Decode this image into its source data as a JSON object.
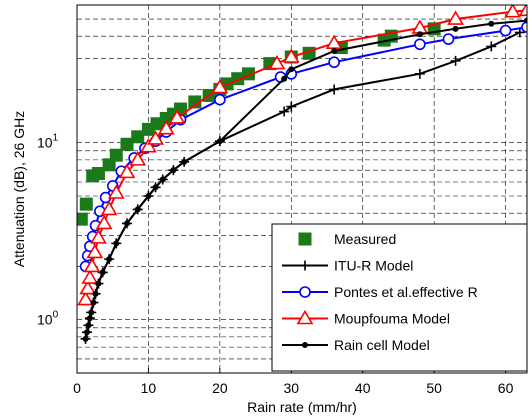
{
  "chart_data": {
    "type": "line",
    "title": "",
    "xlabel": "Rain rate (mm/hr)",
    "ylabel": "Attenuation (dB), 26 GHz",
    "xlim": [
      0,
      63
    ],
    "ylim": [
      0.5,
      60
    ],
    "yscale": "log",
    "grid": true,
    "grid_style": "dashed",
    "legend_position": "lower-right",
    "x_ticks": [
      "0",
      "10",
      "20",
      "30",
      "40",
      "50",
      "60"
    ],
    "y_ticks": [
      {
        "value": 1,
        "base": "10",
        "exp": "0"
      },
      {
        "value": 10,
        "base": "10",
        "exp": "1"
      }
    ],
    "series": [
      {
        "name": "Measured",
        "color": "#1a7a1a",
        "line": false,
        "marker": "square",
        "x": [
          0.6,
          1.3,
          2.2,
          3.0,
          4.5,
          5.5,
          7.0,
          8.5,
          10.0,
          11.2,
          12.5,
          13.5,
          14.5,
          16.5,
          18.5,
          20.0,
          21.0,
          22.5,
          24.0,
          27.0,
          30.0,
          32.5,
          37.0,
          43.0,
          44.0,
          50.0
        ],
        "y": [
          3.7,
          4.5,
          6.5,
          6.7,
          7.5,
          8.5,
          9.8,
          10.8,
          11.9,
          12.8,
          13.7,
          14.5,
          15.5,
          17.0,
          18.5,
          20.0,
          21.5,
          23.0,
          24.5,
          28.0,
          30.5,
          32.0,
          34.5,
          38.0,
          40.0,
          44.0
        ]
      },
      {
        "name": "ITU-R Model",
        "color": "#000000",
        "line": true,
        "marker": "plus",
        "x": [
          1.2,
          1.4,
          1.6,
          1.8,
          2.0,
          2.3,
          2.6,
          3.0,
          3.6,
          4.5,
          5.5,
          7.0,
          8.5,
          10.0,
          11.0,
          12.0,
          13.5,
          15.0,
          20.0,
          29.0,
          30.0,
          36.0,
          48.0,
          53.0,
          58.0,
          62.0
        ],
        "y": [
          0.78,
          0.85,
          0.93,
          1.02,
          1.1,
          1.25,
          1.4,
          1.6,
          1.85,
          2.2,
          2.7,
          3.5,
          4.2,
          5.0,
          5.6,
          6.2,
          7.0,
          7.8,
          10.2,
          15.0,
          16.0,
          20.0,
          24.5,
          29.0,
          35.0,
          42.0
        ]
      },
      {
        "name": "Pontes et al.effective R",
        "color": "#0000ff",
        "line": true,
        "marker": "circle",
        "x": [
          1.2,
          1.5,
          1.8,
          2.2,
          2.6,
          3.2,
          4.0,
          5.0,
          6.2,
          8.0,
          9.5,
          11.0,
          12.5,
          14.5,
          20.0,
          28.5,
          30.0,
          36.0,
          48.0,
          52.0,
          60.0,
          63.0
        ],
        "y": [
          2.0,
          2.3,
          2.6,
          2.95,
          3.4,
          4.1,
          4.9,
          5.7,
          6.9,
          8.2,
          9.3,
          10.2,
          11.5,
          13.5,
          17.5,
          23.5,
          24.5,
          28.5,
          36.0,
          38.5,
          43.0,
          45.0
        ]
      },
      {
        "name": "Moupfouma Model",
        "color": "#ff0000",
        "line": true,
        "marker": "triangle",
        "x": [
          1.2,
          1.5,
          1.8,
          2.1,
          2.5,
          3.0,
          3.8,
          4.5,
          5.5,
          7.0,
          8.5,
          10.0,
          11.0,
          12.5,
          14.0,
          20.0,
          28.0,
          30.0,
          36.0,
          48.0,
          53.0,
          61.0,
          63.0
        ],
        "y": [
          1.3,
          1.5,
          1.72,
          2.0,
          2.4,
          2.9,
          3.5,
          4.2,
          5.2,
          6.8,
          8.0,
          9.5,
          10.5,
          12.0,
          13.8,
          20.5,
          28.0,
          30.5,
          36.5,
          44.5,
          50.0,
          55.0,
          56.0
        ]
      },
      {
        "name": "Rain cell Model",
        "color": "#000000",
        "line": true,
        "marker": "dot",
        "x": [
          1.2,
          1.4,
          1.6,
          1.8,
          2.0,
          2.3,
          2.6,
          3.0,
          3.6,
          4.5,
          5.5,
          7.0,
          8.5,
          10.0,
          11.0,
          12.0,
          13.5,
          15.0,
          20.0,
          29.0,
          30.0,
          36.0,
          48.0,
          53.0,
          58.0,
          63.0
        ],
        "y": [
          0.78,
          0.85,
          0.93,
          1.02,
          1.1,
          1.25,
          1.4,
          1.6,
          1.85,
          2.2,
          2.7,
          3.5,
          4.2,
          5.0,
          5.6,
          6.2,
          7.0,
          7.8,
          10.2,
          23.0,
          26.0,
          33.0,
          41.0,
          44.0,
          47.0,
          49.0
        ]
      }
    ]
  }
}
